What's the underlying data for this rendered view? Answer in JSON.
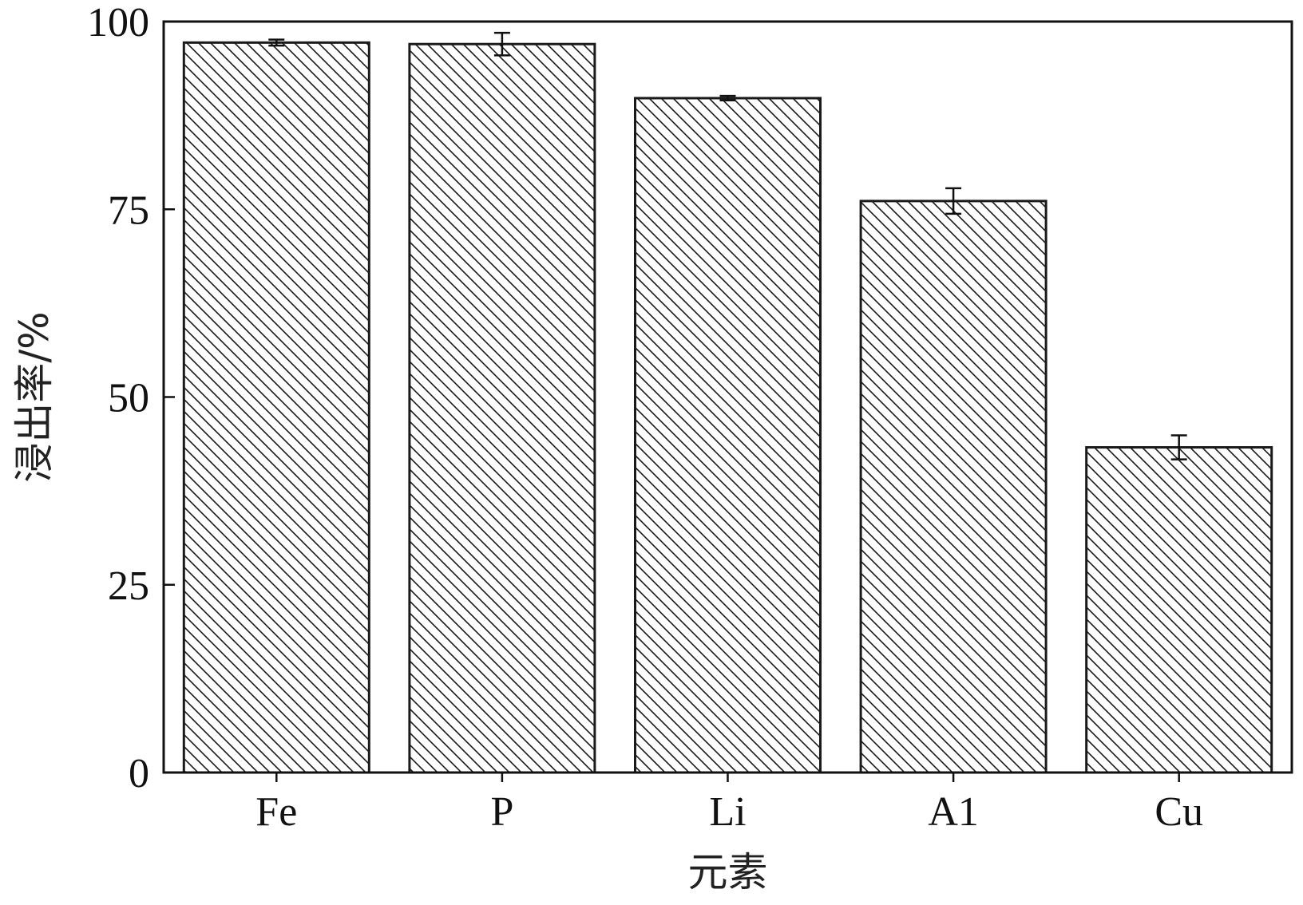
{
  "chart_data": {
    "type": "bar",
    "categories": [
      "Fe",
      "P",
      "Li",
      "A1",
      "Cu"
    ],
    "values": [
      97.2,
      97.0,
      89.8,
      76.1,
      43.3
    ],
    "error": [
      0.4,
      1.5,
      0.3,
      1.7,
      1.6
    ],
    "title": "",
    "xlabel": "元素",
    "ylabel": "浸出率/%",
    "ylim": [
      0,
      100
    ],
    "yticks": [
      0,
      25,
      50,
      75,
      100
    ],
    "grid": false,
    "bar_fill": "hatched",
    "colors": {
      "bar_edge": "#1a1a1a",
      "hatch": "#1a1a1a",
      "axis": "#111111",
      "background": "#ffffff"
    }
  }
}
